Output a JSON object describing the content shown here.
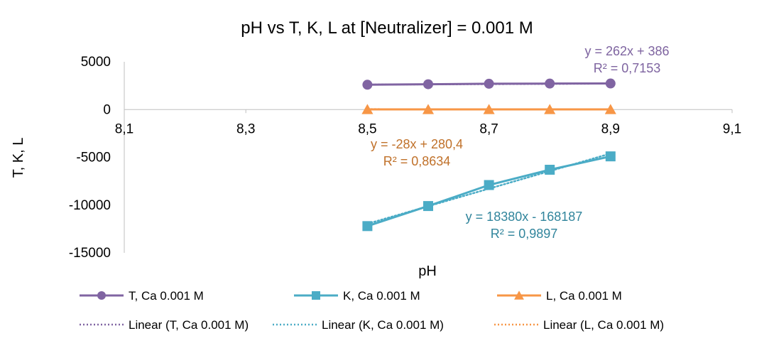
{
  "chart_data": {
    "type": "scatter",
    "title": "pH vs T, K, L at [Neutralizer] = 0.001 M",
    "xlabel": "pH",
    "ylabel": "T, K, L",
    "xlim": [
      8.1,
      9.1
    ],
    "ylim": [
      -15000,
      5000
    ],
    "x_ticks": [
      "8,1",
      "8,3",
      "8,5",
      "8,7",
      "8,9",
      "9,1"
    ],
    "y_ticks": [
      "5000",
      "0",
      "-5000",
      "-10000",
      "-15000"
    ],
    "x_tick_values": [
      8.1,
      8.3,
      8.5,
      8.7,
      8.9,
      9.1
    ],
    "y_tick_values": [
      5000,
      0,
      -5000,
      -10000,
      -15000
    ],
    "grid": false,
    "legend_position": "bottom",
    "series": [
      {
        "name": "T, Ca 0.001 M",
        "color": "#8064A2",
        "marker": "circle",
        "x": [
          8.5,
          8.6,
          8.7,
          8.8,
          8.9
        ],
        "y": [
          2600,
          2650,
          2700,
          2720,
          2730
        ],
        "trendline": {
          "name": "Linear (T, Ca 0.001 M)",
          "equation": "y = 262x + 386",
          "r2": "R² = 0,7153",
          "slope": 262,
          "intercept": 386
        }
      },
      {
        "name": "K, Ca 0.001 M",
        "color": "#4BACC6",
        "marker": "square",
        "x": [
          8.5,
          8.6,
          8.7,
          8.8,
          8.9
        ],
        "y": [
          -12200,
          -10100,
          -7900,
          -6300,
          -4900
        ],
        "trendline": {
          "name": "Linear (K, Ca 0.001 M)",
          "equation": "y = 18380x - 168187",
          "r2": "R² = 0,9897",
          "slope": 18380,
          "intercept": -168187
        }
      },
      {
        "name": "L, Ca 0.001 M",
        "color": "#F79646",
        "marker": "triangle",
        "x": [
          8.5,
          8.6,
          8.7,
          8.8,
          8.9
        ],
        "y": [
          20,
          20,
          20,
          20,
          20
        ],
        "trendline": {
          "name": "Linear (L, Ca 0.001 M)",
          "equation": "y = -28x + 280,4",
          "r2": "R² = 0,8634",
          "slope": -28,
          "intercept": 280.4
        }
      }
    ],
    "annotation_colors": {
      "T": "#7E64A0",
      "K": "#31859C",
      "L": "#C0712A"
    }
  }
}
